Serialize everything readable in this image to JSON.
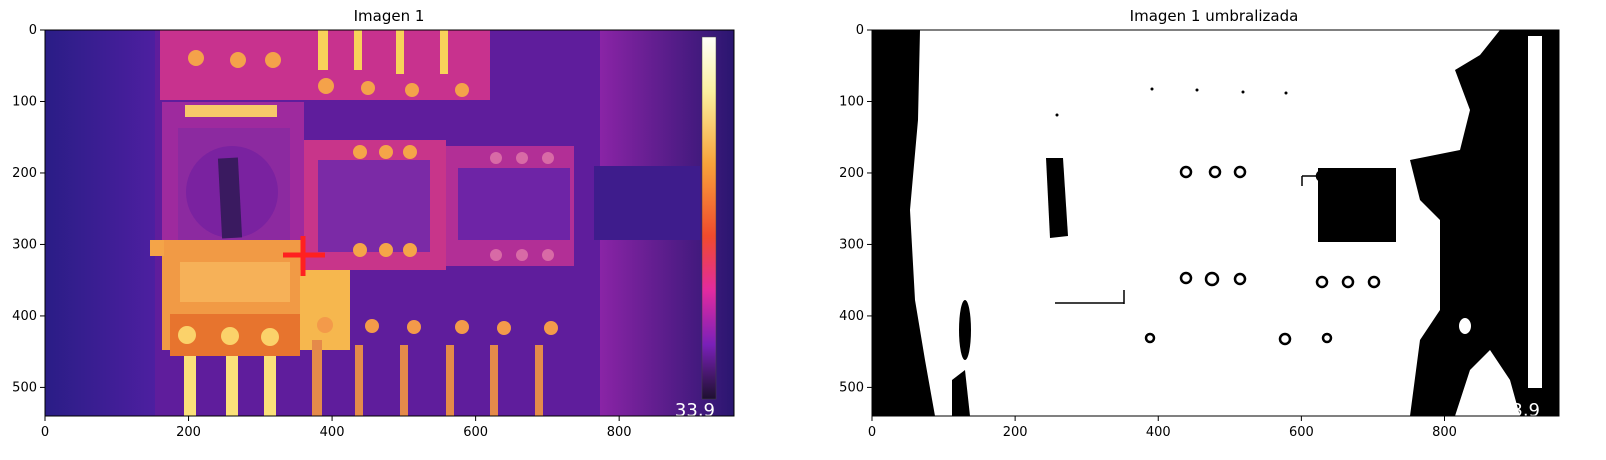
{
  "chart_data": [
    {
      "type": "image",
      "title": "Imagen 1",
      "xlim": [
        0,
        960
      ],
      "ylim": [
        540,
        0
      ],
      "xticks": [
        0,
        200,
        400,
        600,
        800
      ],
      "yticks": [
        0,
        100,
        200,
        300,
        400,
        500
      ],
      "xtick_labels": [
        "0",
        "200",
        "400",
        "600",
        "800"
      ],
      "ytick_labels": [
        "0",
        "100",
        "200",
        "300",
        "400",
        "500"
      ],
      "colormap": "plasma",
      "overlay_text": "33.9",
      "marker": {
        "x": 360,
        "y": 315,
        "color": "#ff2020"
      },
      "colors": {
        "background": "#2b1a7a",
        "hot": "#f6c84a",
        "mid": "#d9328a",
        "cold": "#2c1b6e"
      }
    },
    {
      "type": "image",
      "title": "Imagen 1 umbralizada",
      "xlim": [
        0,
        960
      ],
      "ylim": [
        540,
        0
      ],
      "xticks": [
        0,
        200,
        400,
        600,
        800
      ],
      "yticks": [
        0,
        100,
        200,
        300,
        400,
        500
      ],
      "xtick_labels": [
        "0",
        "200",
        "400",
        "600",
        "800"
      ],
      "ytick_labels": [
        "0",
        "100",
        "200",
        "300",
        "400",
        "500"
      ],
      "colormap": "binary",
      "overlay_text": "33.9"
    }
  ]
}
